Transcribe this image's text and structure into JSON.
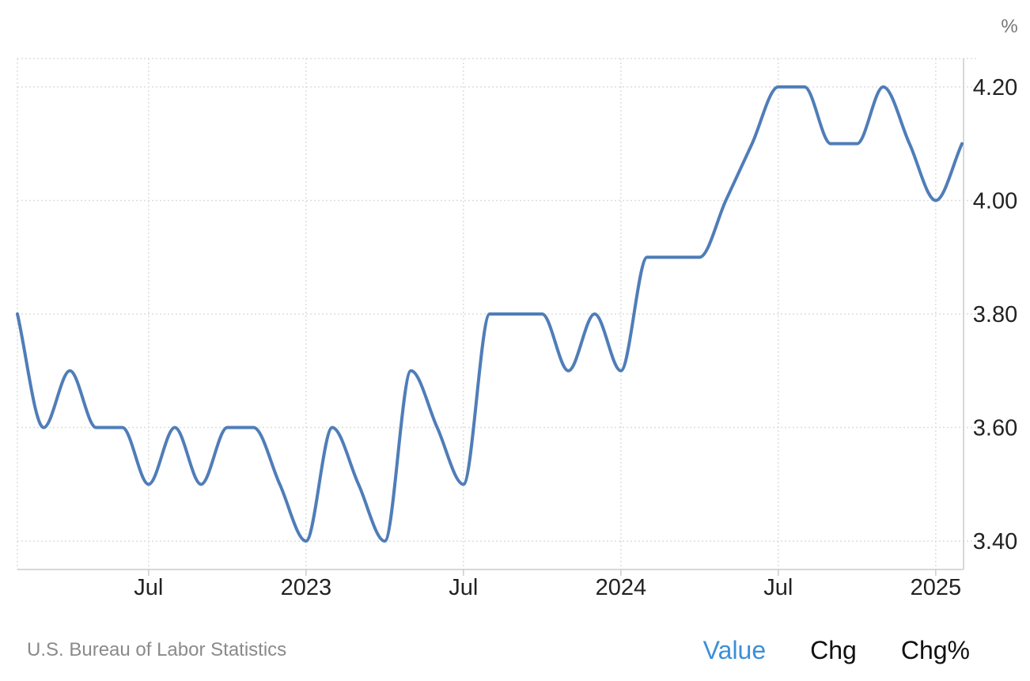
{
  "chart_data": {
    "type": "line",
    "unit": "%",
    "x": [
      "2022-02",
      "2022-03",
      "2022-04",
      "2022-05",
      "2022-06",
      "2022-07",
      "2022-08",
      "2022-09",
      "2022-10",
      "2022-11",
      "2022-12",
      "2023-01",
      "2023-02",
      "2023-03",
      "2023-04",
      "2023-05",
      "2023-06",
      "2023-07",
      "2023-08",
      "2023-09",
      "2023-10",
      "2023-11",
      "2023-12",
      "2024-01",
      "2024-02",
      "2024-03",
      "2024-04",
      "2024-05",
      "2024-06",
      "2024-07",
      "2024-08",
      "2024-09",
      "2024-10",
      "2024-11",
      "2024-12",
      "2025-01",
      "2025-02"
    ],
    "series": [
      {
        "values": [
          3.8,
          3.6,
          3.7,
          3.6,
          3.6,
          3.5,
          3.6,
          3.5,
          3.6,
          3.6,
          3.5,
          3.4,
          3.6,
          3.5,
          3.4,
          3.7,
          3.6,
          3.5,
          3.8,
          3.8,
          3.8,
          3.7,
          3.8,
          3.7,
          3.9,
          3.9,
          3.9,
          4.0,
          4.1,
          4.2,
          4.2,
          4.1,
          4.1,
          4.2,
          4.1,
          4.0,
          4.1
        ],
        "color": "#4f7db8"
      }
    ],
    "ylim": [
      3.35,
      4.25
    ],
    "yticks": [
      3.4,
      3.6,
      3.8,
      4.0,
      4.2
    ],
    "ytick_labels": [
      "3.40",
      "3.60",
      "3.80",
      "4.00",
      "4.20"
    ],
    "xticks": [
      "2022-07",
      "2023-01",
      "2023-07",
      "2024-01",
      "2024-07",
      "2025-01"
    ],
    "xtick_labels": [
      "Jul",
      "2023",
      "Jul",
      "2024",
      "Jul",
      "2025"
    ],
    "grid": true,
    "y_axis_position": "right"
  },
  "footer": {
    "source": "U.S. Bureau of Labor Statistics",
    "tabs": [
      {
        "label": "Value",
        "active": true
      },
      {
        "label": "Chg",
        "active": false
      },
      {
        "label": "Chg%",
        "active": false
      }
    ],
    "active_color": "#3b8fd9"
  }
}
